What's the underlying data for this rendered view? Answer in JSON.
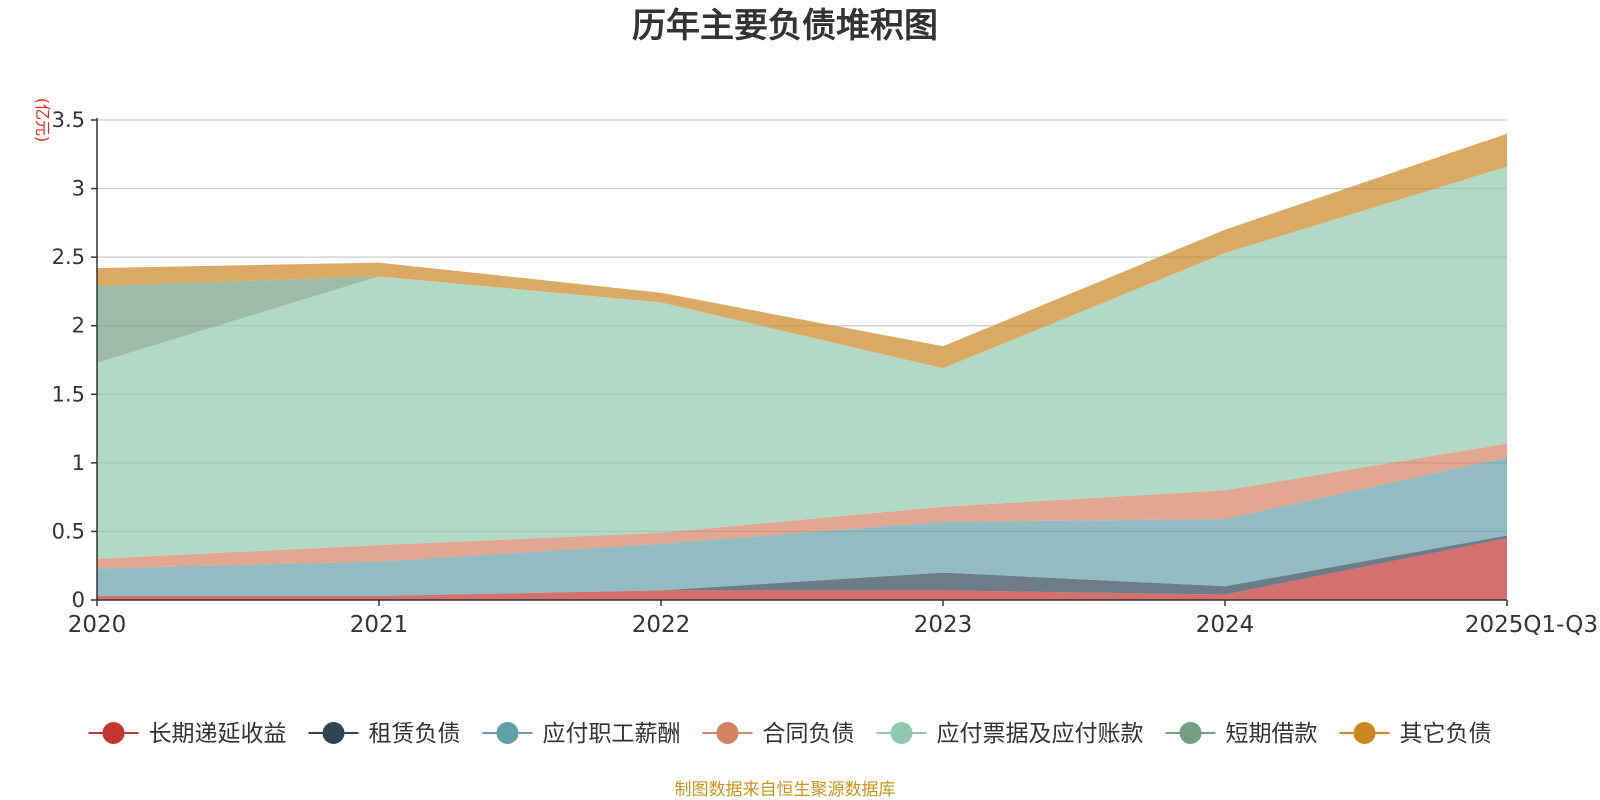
{
  "chart_data": {
    "type": "area",
    "stacked": true,
    "title": "历年主要负债堆积图",
    "ylabel": "(亿元)",
    "xlabel": "",
    "ylim": [
      0,
      3.5
    ],
    "yticks": [
      0,
      0.5,
      1,
      1.5,
      2,
      2.5,
      3,
      3.5
    ],
    "ytick_labels": [
      "0",
      "0.5",
      "1",
      "1.5",
      "2",
      "2.5",
      "3",
      "3.5"
    ],
    "categories": [
      "2020",
      "2021",
      "2022",
      "2023",
      "2024",
      "2025Q1-Q3"
    ],
    "grid": true,
    "legend_position": "bottom",
    "series": [
      {
        "name": "长期递延收益",
        "color": "#c23531",
        "values": [
          0.03,
          0.03,
          0.07,
          0.07,
          0.04,
          0.45
        ]
      },
      {
        "name": "租赁负债",
        "color": "#2f4554",
        "values": [
          0.0,
          0.0,
          0.0,
          0.13,
          0.06,
          0.02
        ]
      },
      {
        "name": "应付职工薪酬",
        "color": "#61a0a8",
        "values": [
          0.2,
          0.25,
          0.34,
          0.37,
          0.49,
          0.57
        ]
      },
      {
        "name": "合同负债",
        "color": "#d48265",
        "values": [
          0.07,
          0.12,
          0.08,
          0.11,
          0.21,
          0.1
        ]
      },
      {
        "name": "应付票据及应付账款",
        "color": "#91c7ae",
        "values": [
          1.43,
          1.96,
          1.68,
          1.01,
          1.73,
          2.02
        ]
      },
      {
        "name": "短期借款",
        "color": "#749f83",
        "values": [
          0.56,
          0.0,
          0.0,
          0.0,
          0.0,
          0.0
        ]
      },
      {
        "name": "其它负债",
        "color": "#ca8622",
        "values": [
          0.13,
          0.1,
          0.07,
          0.16,
          0.17,
          0.24
        ]
      }
    ],
    "source": "制图数据来自恒生聚源数据库"
  }
}
